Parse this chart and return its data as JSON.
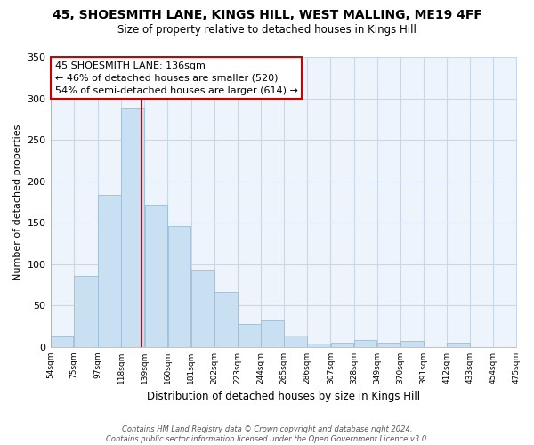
{
  "title": "45, SHOESMITH LANE, KINGS HILL, WEST MALLING, ME19 4FF",
  "subtitle": "Size of property relative to detached houses in Kings Hill",
  "xlabel": "Distribution of detached houses by size in Kings Hill",
  "ylabel": "Number of detached properties",
  "bar_left_edges": [
    54,
    75,
    97,
    118,
    139,
    160,
    181,
    202,
    223,
    244,
    265,
    286,
    307,
    328,
    349,
    370,
    391,
    412,
    433,
    454
  ],
  "bar_widths": [
    21,
    22,
    21,
    21,
    21,
    21,
    21,
    21,
    21,
    21,
    21,
    21,
    21,
    21,
    21,
    21,
    21,
    21,
    21,
    21
  ],
  "bar_heights": [
    13,
    86,
    184,
    289,
    172,
    146,
    93,
    66,
    28,
    32,
    14,
    4,
    5,
    8,
    5,
    7,
    0,
    5,
    0,
    0
  ],
  "bar_color": "#c9dff2",
  "bar_edgecolor": "#9bbdd8",
  "tick_labels": [
    "54sqm",
    "75sqm",
    "97sqm",
    "118sqm",
    "139sqm",
    "160sqm",
    "181sqm",
    "202sqm",
    "223sqm",
    "244sqm",
    "265sqm",
    "286sqm",
    "307sqm",
    "328sqm",
    "349sqm",
    "370sqm",
    "391sqm",
    "412sqm",
    "433sqm",
    "454sqm",
    "475sqm"
  ],
  "vline_x": 136,
  "vline_color": "#cc0000",
  "annotation_line1": "45 SHOESMITH LANE: 136sqm",
  "annotation_line2": "← 46% of detached houses are smaller (520)",
  "annotation_line3": "54% of semi-detached houses are larger (614) →",
  "annotation_box_edgecolor": "#cc0000",
  "ylim": [
    0,
    350
  ],
  "yticks": [
    0,
    50,
    100,
    150,
    200,
    250,
    300,
    350
  ],
  "footnote_line1": "Contains HM Land Registry data © Crown copyright and database right 2024.",
  "footnote_line2": "Contains public sector information licensed under the Open Government Licence v3.0.",
  "bg_color": "#ffffff",
  "plot_bg_color": "#eef4fb",
  "grid_color": "#c8d8e8"
}
